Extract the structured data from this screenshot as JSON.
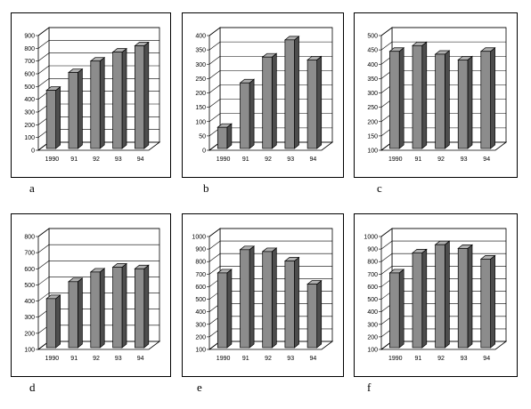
{
  "chart_data": [
    {
      "type": "bar",
      "caption": "a",
      "categories": [
        "1990",
        "91",
        "92",
        "93",
        "94"
      ],
      "values": [
        470,
        610,
        700,
        770,
        820
      ],
      "ylim": [
        0,
        900
      ],
      "yticks": [
        0,
        100,
        200,
        300,
        400,
        500,
        600,
        700,
        800,
        900
      ],
      "grid": true,
      "legend": "none",
      "bar_color": "#8c8c8c"
    },
    {
      "type": "bar",
      "caption": "b",
      "categories": [
        "1990",
        "91",
        "92",
        "93",
        "94"
      ],
      "values": [
        80,
        235,
        325,
        385,
        315
      ],
      "ylim": [
        0,
        400
      ],
      "yticks": [
        0,
        50,
        100,
        150,
        200,
        250,
        300,
        350,
        400
      ],
      "grid": true,
      "legend": "none",
      "bar_color": "#8c8c8c"
    },
    {
      "type": "bar",
      "caption": "c",
      "categories": [
        "1990",
        "91",
        "92",
        "93",
        "94"
      ],
      "values": [
        445,
        465,
        435,
        415,
        445
      ],
      "ylim": [
        100,
        500
      ],
      "yticks": [
        100,
        150,
        200,
        250,
        300,
        350,
        400,
        450,
        500
      ],
      "grid": true,
      "legend": "none",
      "bar_color": "#8c8c8c"
    },
    {
      "type": "bar",
      "caption": "d",
      "categories": [
        "1990",
        "91",
        "92",
        "93",
        "94"
      ],
      "values": [
        415,
        520,
        580,
        610,
        600
      ],
      "ylim": [
        100,
        800
      ],
      "yticks": [
        100,
        200,
        300,
        400,
        500,
        600,
        700,
        800
      ],
      "grid": true,
      "legend": "none",
      "bar_color": "#8c8c8c"
    },
    {
      "type": "bar",
      "caption": "e",
      "categories": [
        "1990",
        "91",
        "92",
        "93",
        "94"
      ],
      "values": [
        710,
        895,
        880,
        805,
        620
      ],
      "ylim": [
        100,
        1000
      ],
      "yticks": [
        100,
        200,
        300,
        400,
        500,
        600,
        700,
        800,
        900,
        1000
      ],
      "grid": true,
      "legend": "none",
      "bar_color": "#8c8c8c"
    },
    {
      "type": "bar",
      "caption": "f",
      "categories": [
        "1990",
        "91",
        "92",
        "93",
        "94"
      ],
      "values": [
        710,
        870,
        935,
        905,
        820
      ],
      "ylim": [
        100,
        1000
      ],
      "yticks": [
        100,
        200,
        300,
        400,
        500,
        600,
        700,
        800,
        900,
        1000
      ],
      "grid": true,
      "legend": "none",
      "bar_color": "#8c8c8c"
    }
  ]
}
